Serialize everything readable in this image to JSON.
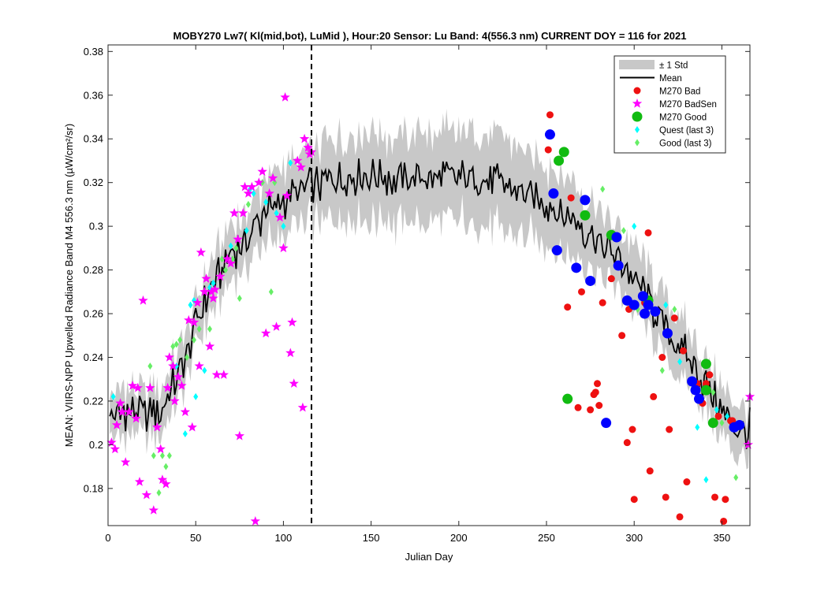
{
  "chart_data": {
    "type": "scatter",
    "title": "MOBY270   Lw7( Kl(mid,bot), LuMid ),   Hour:20 Sensor: Lu Band: 4(556.3 nm)   CURRENT DOY = 116 for 2021",
    "xlabel": "Julian Day",
    "ylabel": "MEAN: VIIRS-NPP Upwelled Radiance Band M4 556.3 nm (µW/cm²/sr)",
    "xlim": [
      0,
      366
    ],
    "ylim": [
      0.163,
      0.383
    ],
    "xticks": [
      0,
      50,
      100,
      150,
      200,
      250,
      300,
      350
    ],
    "yticks": [
      0.18,
      0.2,
      0.22,
      0.24,
      0.26,
      0.28,
      0.3,
      0.32,
      0.34,
      0.36,
      0.38
    ],
    "current_doy_marker": 116,
    "grid": false,
    "legend_position": "top-right",
    "legend": [
      "± 1 Std",
      "Mean",
      "M270 Bad",
      "M270 BadSen",
      "M270 Good",
      "Quest (last 3)",
      "Good (last 3)"
    ],
    "colors": {
      "std_band": "#c8c8c8",
      "mean": "#000000",
      "bad": "#ee1111",
      "badsen": "#ff00ff",
      "good": "#11bb11",
      "blue": "#0000ff",
      "quest": "#00ffff",
      "good_last3": "#66ee66"
    },
    "mean_control_points": {
      "x": [
        1,
        10,
        20,
        30,
        40,
        50,
        60,
        70,
        80,
        90,
        100,
        110,
        116,
        130,
        150,
        170,
        190,
        210,
        230,
        250,
        260,
        270,
        280,
        290,
        300,
        310,
        320,
        330,
        340,
        350,
        360,
        366
      ],
      "y": [
        0.212,
        0.215,
        0.214,
        0.216,
        0.232,
        0.255,
        0.274,
        0.287,
        0.296,
        0.306,
        0.312,
        0.317,
        0.318,
        0.322,
        0.323,
        0.321,
        0.323,
        0.322,
        0.318,
        0.31,
        0.305,
        0.3,
        0.293,
        0.286,
        0.276,
        0.263,
        0.251,
        0.24,
        0.228,
        0.215,
        0.206,
        0.208
      ]
    },
    "std_control_points": {
      "x": [
        1,
        10,
        20,
        30,
        40,
        50,
        60,
        70,
        80,
        90,
        100,
        110,
        116,
        130,
        150,
        170,
        190,
        210,
        230,
        250,
        260,
        270,
        280,
        290,
        300,
        310,
        320,
        330,
        340,
        350,
        360,
        366
      ],
      "y": [
        0.01,
        0.011,
        0.01,
        0.011,
        0.012,
        0.012,
        0.012,
        0.013,
        0.014,
        0.015,
        0.016,
        0.017,
        0.018,
        0.019,
        0.02,
        0.021,
        0.021,
        0.02,
        0.02,
        0.018,
        0.017,
        0.016,
        0.015,
        0.015,
        0.015,
        0.014,
        0.013,
        0.013,
        0.012,
        0.012,
        0.012,
        0.012
      ]
    },
    "series": [
      {
        "name": "M270 Bad",
        "x": [
          251,
          252,
          262,
          264,
          268,
          270,
          275,
          277,
          278,
          279,
          280,
          282,
          287,
          293,
          296,
          297,
          299,
          300,
          306,
          308,
          309,
          311,
          316,
          318,
          320,
          323,
          326,
          328,
          330,
          336,
          339,
          341,
          343,
          346,
          348,
          351,
          352,
          355,
          356
        ],
        "y": [
          0.335,
          0.351,
          0.263,
          0.313,
          0.217,
          0.27,
          0.216,
          0.223,
          0.224,
          0.228,
          0.218,
          0.265,
          0.276,
          0.25,
          0.201,
          0.262,
          0.207,
          0.175,
          0.265,
          0.297,
          0.188,
          0.222,
          0.24,
          0.176,
          0.207,
          0.258,
          0.167,
          0.243,
          0.183,
          0.228,
          0.219,
          0.228,
          0.232,
          0.176,
          0.213,
          0.165,
          0.175,
          0.211,
          0.211
        ]
      },
      {
        "name": "M270 BadSen",
        "x": [
          2,
          4,
          5,
          7,
          8,
          10,
          12,
          14,
          16,
          17,
          18,
          20,
          22,
          24,
          26,
          28,
          30,
          31,
          33,
          34,
          35,
          37,
          38,
          40,
          42,
          44,
          46,
          48,
          49,
          51,
          52,
          53,
          55,
          56,
          58,
          59,
          60,
          61,
          62,
          64,
          66,
          68,
          70,
          72,
          74,
          75,
          77,
          78,
          80,
          82,
          84,
          86,
          88,
          90,
          92,
          94,
          96,
          98,
          100,
          101,
          102,
          104,
          105,
          106,
          108,
          110,
          111,
          112,
          114,
          115,
          116,
          365,
          366
        ],
        "y": [
          0.201,
          0.198,
          0.209,
          0.219,
          0.215,
          0.192,
          0.215,
          0.227,
          0.212,
          0.226,
          0.183,
          0.266,
          0.177,
          0.226,
          0.17,
          0.208,
          0.198,
          0.184,
          0.182,
          0.226,
          0.24,
          0.236,
          0.22,
          0.231,
          0.227,
          0.215,
          0.257,
          0.208,
          0.256,
          0.265,
          0.236,
          0.288,
          0.27,
          0.276,
          0.245,
          0.27,
          0.267,
          0.271,
          0.232,
          0.277,
          0.232,
          0.285,
          0.283,
          0.306,
          0.294,
          0.204,
          0.306,
          0.318,
          0.315,
          0.318,
          0.165,
          0.32,
          0.325,
          0.251,
          0.315,
          0.322,
          0.254,
          0.304,
          0.29,
          0.359,
          0.314,
          0.242,
          0.256,
          0.228,
          0.33,
          0.327,
          0.217,
          0.34,
          0.336,
          0.333,
          0.334,
          0.2,
          0.222
        ]
      },
      {
        "name": "M270 Good",
        "x": [
          257,
          260,
          262,
          272,
          287,
          308,
          341,
          341,
          345
        ],
        "y": [
          0.33,
          0.334,
          0.221,
          0.305,
          0.296,
          0.266,
          0.237,
          0.225,
          0.21
        ]
      },
      {
        "name": "Blue",
        "x": [
          252,
          254,
          256,
          267,
          272,
          275,
          284,
          290,
          291,
          296,
          300,
          305,
          306,
          308,
          312,
          319,
          333,
          335,
          337,
          357,
          360
        ],
        "y": [
          0.342,
          0.315,
          0.289,
          0.281,
          0.312,
          0.275,
          0.21,
          0.295,
          0.282,
          0.266,
          0.264,
          0.268,
          0.26,
          0.264,
          0.261,
          0.251,
          0.229,
          0.225,
          0.221,
          0.208,
          0.209
        ]
      },
      {
        "name": "Quest (last 3)",
        "x": [
          3,
          39,
          44,
          47,
          49,
          50,
          55,
          58,
          60,
          70,
          79,
          81,
          83,
          90,
          96,
          100,
          104,
          300,
          318,
          326,
          336,
          341,
          347,
          353
        ],
        "y": [
          0.222,
          0.236,
          0.205,
          0.264,
          0.266,
          0.222,
          0.234,
          0.272,
          0.274,
          0.291,
          0.298,
          0.317,
          0.315,
          0.311,
          0.306,
          0.3,
          0.329,
          0.3,
          0.264,
          0.238,
          0.208,
          0.184,
          0.216,
          0.213
        ]
      },
      {
        "name": "Good (last 3)",
        "x": [
          24,
          26,
          29,
          31,
          33,
          35,
          37,
          39,
          41,
          45,
          49,
          52,
          58,
          65,
          67,
          71,
          73,
          75,
          80,
          88,
          93,
          95,
          282,
          294,
          302,
          316,
          323,
          345,
          350,
          358
        ],
        "y": [
          0.236,
          0.195,
          0.178,
          0.195,
          0.19,
          0.195,
          0.245,
          0.246,
          0.248,
          0.24,
          0.248,
          0.253,
          0.253,
          0.285,
          0.28,
          0.285,
          0.29,
          0.267,
          0.31,
          0.32,
          0.27,
          0.32,
          0.317,
          0.298,
          0.262,
          0.234,
          0.262,
          0.224,
          0.21,
          0.185
        ]
      }
    ]
  }
}
